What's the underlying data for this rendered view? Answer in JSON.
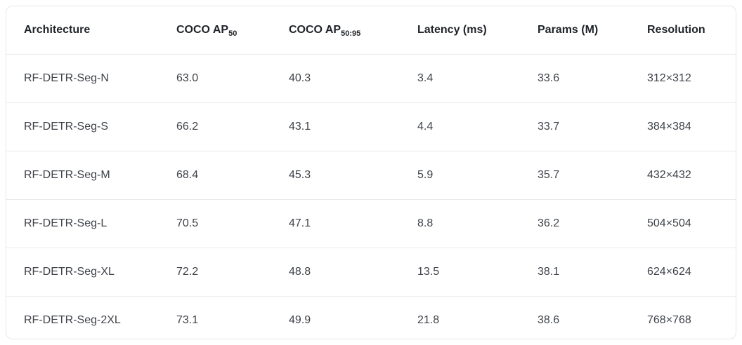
{
  "chart_data": {
    "type": "table",
    "columns": [
      {
        "label": "Architecture",
        "sub": ""
      },
      {
        "label": "COCO AP",
        "sub": "50"
      },
      {
        "label": "COCO AP",
        "sub": "50:95"
      },
      {
        "label": "Latency (ms)",
        "sub": ""
      },
      {
        "label": "Params (M)",
        "sub": ""
      },
      {
        "label": "Resolution",
        "sub": ""
      }
    ],
    "rows": [
      [
        "RF-DETR-Seg-N",
        "63.0",
        "40.3",
        "3.4",
        "33.6",
        "312×312"
      ],
      [
        "RF-DETR-Seg-S",
        "66.2",
        "43.1",
        "4.4",
        "33.7",
        "384×384"
      ],
      [
        "RF-DETR-Seg-M",
        "68.4",
        "45.3",
        "5.9",
        "35.7",
        "432×432"
      ],
      [
        "RF-DETR-Seg-L",
        "70.5",
        "47.1",
        "8.8",
        "36.2",
        "504×504"
      ],
      [
        "RF-DETR-Seg-XL",
        "72.2",
        "48.8",
        "13.5",
        "38.1",
        "624×624"
      ],
      [
        "RF-DETR-Seg-2XL",
        "73.1",
        "49.9",
        "21.8",
        "38.6",
        "768×768"
      ]
    ]
  },
  "colors": {
    "background": "#ffffff",
    "card_border": "#e6e7ea",
    "row_divider": "#e9eaec",
    "header_text": "#1f2328",
    "body_text": "#3f4349"
  }
}
